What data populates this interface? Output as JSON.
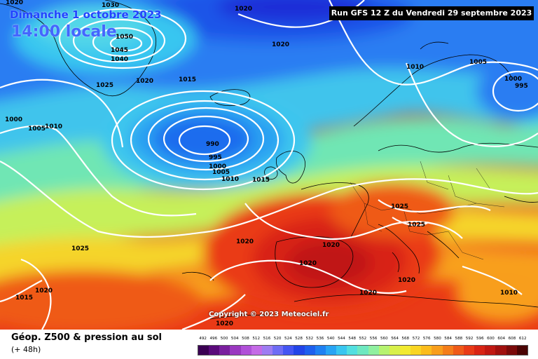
{
  "title_date": "Dimanche 1 octobre 2023",
  "title_time": "14:00 locale",
  "run_label": "Run GFS 12 Z du Vendredi 29 septembre 2023",
  "copyright": "Copyright © 2023 Meteociel.fr",
  "footer": {
    "title": "Géop. Z500 & pression au sol",
    "subtitle": "(+ 48h)"
  },
  "legend": {
    "values": [
      "492",
      "496",
      "500",
      "504",
      "508",
      "512",
      "516",
      "520",
      "524",
      "528",
      "532",
      "536",
      "540",
      "544",
      "548",
      "552",
      "556",
      "560",
      "564",
      "568",
      "572",
      "576",
      "580",
      "584",
      "588",
      "592",
      "596",
      "600",
      "604",
      "608",
      "612"
    ],
    "colors": [
      "#3a0052",
      "#5a0a7a",
      "#7a1f9e",
      "#9a38c0",
      "#b050d8",
      "#c46ae6",
      "#9e7cf2",
      "#6f6cf5",
      "#4455f3",
      "#2244e8",
      "#1e5fee",
      "#1f80f2",
      "#28a4f4",
      "#39c6f0",
      "#52dfe0",
      "#6ee8c0",
      "#8ff0a0",
      "#b6f370",
      "#d8f04a",
      "#f2ea30",
      "#f9d522",
      "#fbbc1c",
      "#f89e1c",
      "#f47d1a",
      "#ef5a18",
      "#e83a16",
      "#d82414",
      "#c01812",
      "#a0100e",
      "#7a0a0a",
      "#4a0404"
    ]
  },
  "isobar_labels": [
    {
      "label": "1020",
      "region": "top-left corner"
    },
    {
      "label": "1030",
      "region": "upper-left high"
    },
    {
      "label": "1050",
      "region": "upper-left high"
    },
    {
      "label": "1045",
      "region": "upper-left high"
    },
    {
      "label": "1040",
      "region": "upper-left high"
    },
    {
      "label": "1020",
      "region": "north atlantic top"
    },
    {
      "label": "1020",
      "region": "north sea"
    },
    {
      "label": "1025",
      "region": "greenland south"
    },
    {
      "label": "1020",
      "region": "greenland south"
    },
    {
      "label": "1015",
      "region": "iceland west"
    },
    {
      "label": "1000",
      "region": "west edge"
    },
    {
      "label": "1005",
      "region": "west edge"
    },
    {
      "label": "1010",
      "region": "west edge"
    },
    {
      "label": "990",
      "region": "atlantic low"
    },
    {
      "label": "995",
      "region": "atlantic low"
    },
    {
      "label": "1000",
      "region": "atlantic low"
    },
    {
      "label": "1005",
      "region": "atlantic low"
    },
    {
      "label": "1010",
      "region": "atlantic low"
    },
    {
      "label": "1015",
      "region": "british isles"
    },
    {
      "label": "1010",
      "region": "norway"
    },
    {
      "label": "1005",
      "region": "baltic"
    },
    {
      "label": "1000",
      "region": "russia low"
    },
    {
      "label": "995",
      "region": "russia low"
    },
    {
      "label": "1025",
      "region": "mid atlantic"
    },
    {
      "label": "1020",
      "region": "biscay"
    },
    {
      "label": "1020",
      "region": "iberia north"
    },
    {
      "label": "1020",
      "region": "iberia"
    },
    {
      "label": "1025",
      "region": "central europe"
    },
    {
      "label": "1025",
      "region": "alps"
    },
    {
      "label": "1020",
      "region": "italy"
    },
    {
      "label": "1020",
      "region": "north africa"
    },
    {
      "label": "1020",
      "region": "morocco"
    },
    {
      "label": "1015",
      "region": "southwest"
    },
    {
      "label": "1020",
      "region": "southwest"
    },
    {
      "label": "1010",
      "region": "east mediterranean"
    }
  ]
}
